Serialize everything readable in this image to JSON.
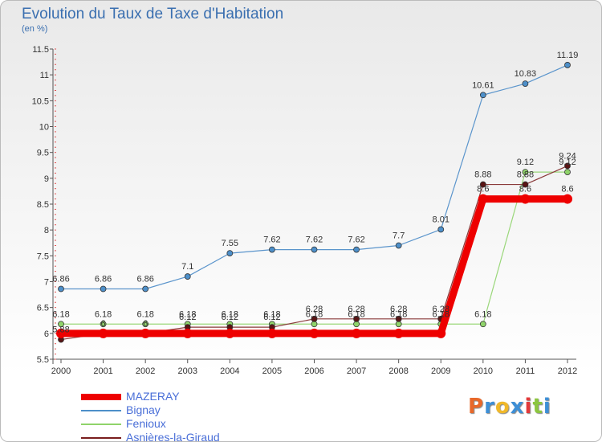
{
  "brand": {
    "logo_text": "Proxiti"
  },
  "chart_data": {
    "type": "line",
    "title": "Evolution du Taux de Taxe d'Habitation",
    "ylabel": "(en %)",
    "xlabel": "",
    "x": [
      "2000",
      "2001",
      "2002",
      "2003",
      "2004",
      "2005",
      "2006",
      "2007",
      "2008",
      "2009",
      "2010",
      "2011",
      "2012"
    ],
    "ylim": [
      5.5,
      11.5
    ],
    "yticks": [
      5.5,
      6,
      6.5,
      7,
      7.5,
      8,
      8.5,
      9,
      9.5,
      10,
      10.5,
      11,
      11.5
    ],
    "ytick_labels": [
      "5.5",
      "6",
      "6.5",
      "7",
      "7.5",
      "8",
      "8.5",
      "9",
      "9.5",
      "10",
      "10.5",
      "11",
      "11.5"
    ],
    "grid": false,
    "legend_position": "bottom-left",
    "series": [
      {
        "name": "MAZERAY",
        "color": "#ee0000",
        "values": [
          6,
          6,
          6,
          6,
          6,
          6,
          6,
          6,
          6,
          6,
          8.6,
          8.6,
          8.6
        ],
        "labels": [
          "",
          "",
          "",
          "",
          "",
          "",
          "",
          "",
          "",
          "",
          "8.6",
          "8.6",
          "8.6"
        ]
      },
      {
        "name": "Bignay",
        "color": "#4d8fc9",
        "values": [
          6.86,
          6.86,
          6.86,
          7.1,
          7.55,
          7.62,
          7.62,
          7.62,
          7.7,
          8.01,
          10.61,
          10.83,
          11.19
        ],
        "labels": [
          "6.86",
          "6.86",
          "6.86",
          "7.1",
          "7.55",
          "7.62",
          "7.62",
          "7.62",
          "7.7",
          "8.01",
          "10.61",
          "10.83",
          "11.19"
        ]
      },
      {
        "name": "Fenioux",
        "color": "#8fd36a",
        "values": [
          6.18,
          6.18,
          6.18,
          6.18,
          6.18,
          6.18,
          6.18,
          6.18,
          6.18,
          6.18,
          6.18,
          9.12,
          9.12
        ],
        "labels": [
          "6.18",
          "6.18",
          "6.18",
          "6.18",
          "6.18",
          "6.18",
          "6.18",
          "6.18",
          "6.18",
          "6.18",
          "6.18",
          "9.12",
          "9.12"
        ]
      },
      {
        "name": "Asnières-la-Giraud",
        "color": "#7a1e1e",
        "values": [
          5.88,
          6,
          6,
          6.12,
          6.12,
          6.12,
          6.28,
          6.28,
          6.28,
          6.28,
          8.88,
          8.88,
          9.24
        ],
        "labels": [
          "5.88",
          "6",
          "6",
          "6.12",
          "6.12",
          "6.12",
          "6.28",
          "6.28",
          "6.28",
          "6.28",
          "8.88",
          "8.88",
          "9.24"
        ]
      }
    ]
  }
}
